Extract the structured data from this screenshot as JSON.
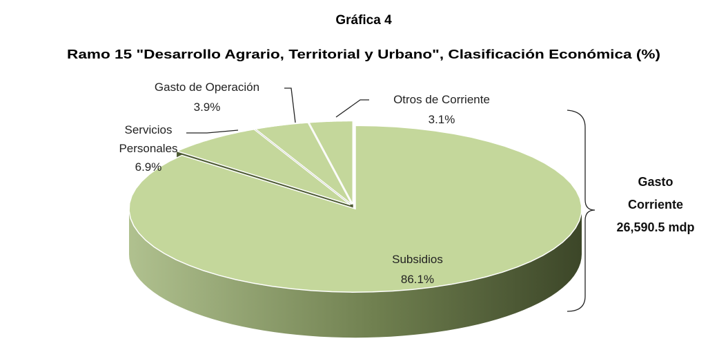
{
  "chart_data": {
    "type": "pie3d",
    "title": "Gráfica 4",
    "subtitle": "Ramo 15 \"Desarrollo Agrario, Territorial y Urbano\", Clasificación Económica (%)",
    "categories": [
      "Subsidios",
      "Servicios Personales",
      "Gasto de Operación",
      "Otros de Corriente"
    ],
    "values": [
      86.1,
      6.9,
      3.9,
      3.1
    ],
    "value_labels": [
      "86.1%",
      "6.9%",
      "3.9%",
      "3.1%"
    ],
    "color": "#c4d79b",
    "annotation": [
      "Gasto",
      "Corriente",
      "26,590.5 mdp"
    ]
  }
}
